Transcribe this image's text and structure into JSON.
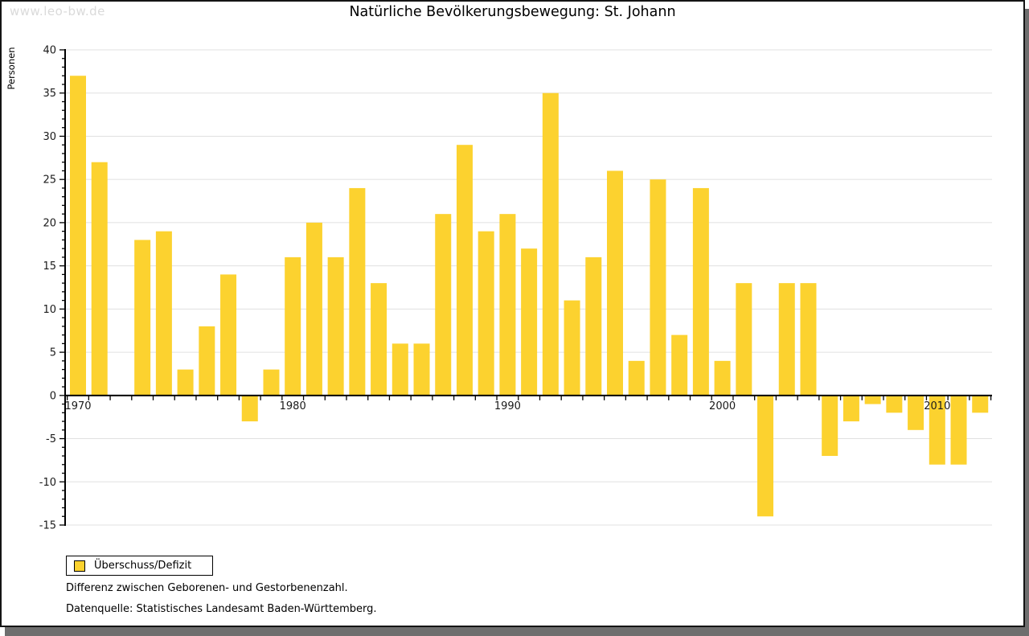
{
  "watermark": "www.leo-bw.de",
  "legend": {
    "label": "Überschuss/Defizit"
  },
  "notes": {
    "line1": "Differenz zwischen Geborenen- und Gestorbenenzahl.",
    "line2": "Datenquelle: Statistisches Landesamt Baden-Württemberg."
  },
  "chart_data": {
    "type": "bar",
    "title": "Natürliche Bevölkerungsbewegung: St. Johann",
    "ylabel": "Personen",
    "xlabel": "",
    "series_name": "Überschuss/Defizit",
    "x": [
      1970,
      1971,
      1972,
      1973,
      1974,
      1975,
      1976,
      1977,
      1978,
      1979,
      1980,
      1981,
      1982,
      1983,
      1984,
      1985,
      1986,
      1987,
      1988,
      1989,
      1990,
      1991,
      1992,
      1993,
      1994,
      1995,
      1996,
      1997,
      1998,
      1999,
      2000,
      2001,
      2002,
      2003,
      2004,
      2005,
      2006,
      2007,
      2008,
      2009,
      2010,
      2011,
      2012
    ],
    "values": [
      37,
      27,
      0,
      18,
      19,
      3,
      8,
      14,
      -3,
      3,
      16,
      20,
      16,
      24,
      13,
      6,
      6,
      21,
      29,
      19,
      21,
      17,
      35,
      11,
      16,
      26,
      4,
      25,
      7,
      24,
      4,
      13,
      -14,
      13,
      13,
      -7,
      -3,
      -1,
      -2,
      -4,
      -8,
      -8,
      -2
    ],
    "ylim": [
      -15,
      40
    ],
    "ytick_step": 5,
    "minor_ytick_step": 1,
    "xtick_labels": [
      1970,
      1980,
      1990,
      2000,
      2010
    ],
    "grid": true,
    "legend_position": "bottom-left",
    "colors": {
      "bar": "#fcd22f",
      "grid": "#e0e0e0",
      "axis": "#000000",
      "tick_label": "#1a1a1a",
      "watermark": "#dadada",
      "frame_shadow": "#6e6e6e"
    }
  }
}
